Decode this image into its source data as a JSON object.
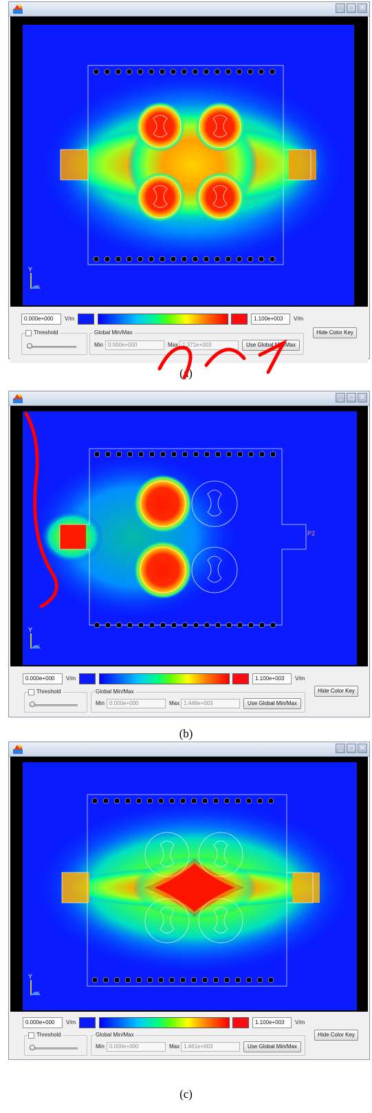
{
  "colors": {
    "accent_red": "#ff0000",
    "field_low": "#0a1bff",
    "field_high": "#ff0a10"
  },
  "icons": {
    "app": "app-logo-icon",
    "minimize": "minimize-icon",
    "maximize": "maximize-icon",
    "close": "close-icon",
    "axes": "axes-triad-icon"
  },
  "window_controls": {
    "minimize": "_",
    "maximize": "□",
    "close": "×"
  },
  "axis_label": "Y",
  "panels": [
    {
      "caption": "(a)",
      "field_label": "",
      "color_key": {
        "min_value": "0.000e+000",
        "min_unit": "V/m",
        "max_value": "1.100e+003",
        "max_unit": "V/m"
      },
      "threshold": {
        "label": "Threshold",
        "checked": false
      },
      "global": {
        "group_label": "Global Min/Max",
        "min_label": "Min",
        "min_value": "0.000e+000",
        "max_label": "Max",
        "max_value": "1.371e+003",
        "button": "Use Global Min/Max"
      },
      "hide_button": "Hide Color Key"
    },
    {
      "caption": "(b)",
      "field_label": "P2",
      "color_key": {
        "min_value": "0.000e+000",
        "min_unit": "V/m",
        "max_value": "1.100e+003",
        "max_unit": "V/m"
      },
      "threshold": {
        "label": "Threshold",
        "checked": false
      },
      "global": {
        "group_label": "Global Min/Max",
        "min_label": "Min",
        "min_value": "0.000e+000",
        "max_label": "Max",
        "max_value": "1.446e+003",
        "button": "Use Global Min/Max"
      },
      "hide_button": "Hide Color Key"
    },
    {
      "caption": "(c)",
      "field_label": "",
      "color_key": {
        "min_value": "0.000e+000",
        "min_unit": "V/m",
        "max_value": "1.100e+003",
        "max_unit": "V/m"
      },
      "threshold": {
        "label": "Threshold",
        "checked": false
      },
      "global": {
        "group_label": "Global Min/Max",
        "min_label": "Min",
        "min_value": "0.000e+000",
        "max_label": "Max",
        "max_value": "1.461e+003",
        "button": "Use Global Min/Max"
      },
      "hide_button": "Hide Color Key"
    }
  ]
}
